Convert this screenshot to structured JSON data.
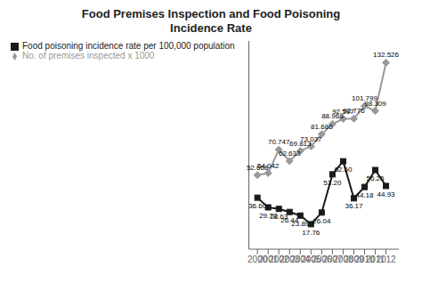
{
  "chart_data": {
    "type": "line",
    "title": "Food Premises Inspection and Food Poisoning\nIncidence Rate",
    "x": [
      2000,
      2001,
      2002,
      2003,
      2004,
      2005,
      2006,
      2007,
      2008,
      2009,
      2010,
      2011,
      2012
    ],
    "series": [
      {
        "name": "Food poisoning incidence rate per 100,000 population",
        "color": "#1a1a1a",
        "marker": "square",
        "values": [
          36.6,
          29.72,
          28.63,
          26.44,
          23.89,
          17.76,
          26.04,
          53.2,
          62.5,
          36.17,
          44.18,
          56.25,
          44.93
        ],
        "value_labels": [
          "36.60",
          "29.72",
          "28.63",
          "26.44",
          "23.89",
          "17.76",
          "26.04",
          "53.20",
          "62.50",
          "36.17",
          "44.18",
          "56.25",
          "44.93"
        ]
      },
      {
        "name": "No. of premises inspected x 1000",
        "color": "#999999",
        "marker": "diamond",
        "values": [
          52.668,
          54.042,
          70.747,
          62.633,
          69.813,
          73.037,
          81.686,
          88.968,
          92.597,
          92.776,
          101.799,
          98.309,
          132.526
        ]
      }
    ],
    "xlim": [
      1999.2,
      2013.2
    ],
    "xticks": [
      2000,
      2001,
      2002,
      2003,
      2004,
      2005,
      2006,
      2007,
      2008,
      2009,
      2010,
      2011,
      2012
    ],
    "ylim": [
      0,
      148
    ],
    "tick_labels": "x",
    "legend": "upper left",
    "data_labels": true
  }
}
